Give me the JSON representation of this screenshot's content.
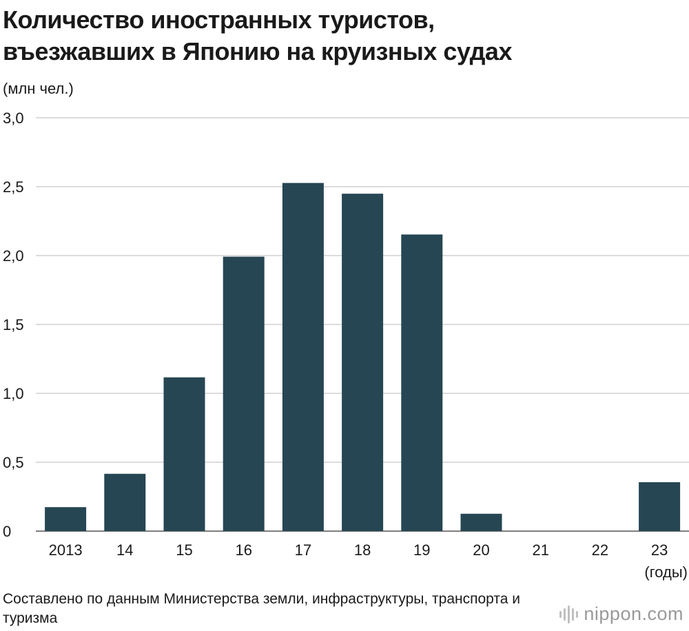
{
  "chart_data": {
    "type": "bar",
    "title_lines": [
      "Количество иностранных туристов,",
      "въезжавших в Японию на круизных судах"
    ],
    "ylabel": "(млн чел.)",
    "xlabel": "(годы)",
    "categories": [
      "2013",
      "14",
      "15",
      "16",
      "17",
      "18",
      "19",
      "20",
      "21",
      "22",
      "23"
    ],
    "values": [
      0.174,
      0.416,
      1.116,
      1.992,
      2.527,
      2.449,
      2.153,
      0.126,
      0,
      0,
      0.355
    ],
    "ylim": [
      0,
      3.0
    ],
    "yticks": [
      {
        "value": 0,
        "label": "0"
      },
      {
        "value": 0.5,
        "label": "0,5"
      },
      {
        "value": 1.0,
        "label": "1,0"
      },
      {
        "value": 1.5,
        "label": "1,5"
      },
      {
        "value": 2.0,
        "label": "2,0"
      },
      {
        "value": 2.5,
        "label": "2,5"
      },
      {
        "value": 3.0,
        "label": "3,0"
      }
    ],
    "grid": true,
    "bar_color": "#264653",
    "grid_color": "#c8c8c8"
  },
  "source": "Составлено по данным Министерства земли, инфраструктуры, транспорта и туризма",
  "logo": {
    "name": "nippon",
    "suffix": ".com"
  }
}
